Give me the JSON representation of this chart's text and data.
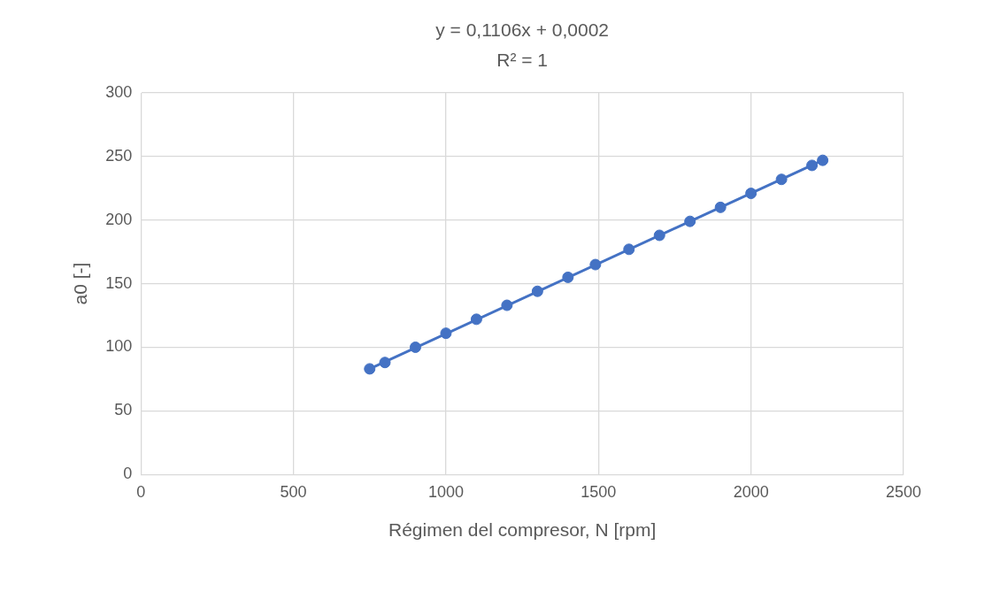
{
  "chart_data": {
    "type": "scatter",
    "xlabel": "Régimen del compresor, N [rpm]",
    "ylabel": "a0 [-]",
    "annotations": [
      "y = 0,1106x + 0,0002",
      "R² = 1"
    ],
    "series": [
      {
        "type": "scatter",
        "color": "#4472c4",
        "x": [
          750,
          800,
          900,
          1000,
          1100,
          1200,
          1300,
          1400,
          1490,
          1600,
          1700,
          1800,
          1900,
          2000,
          2100,
          2200,
          2235
        ],
        "values": [
          83,
          88,
          100,
          111,
          122,
          133,
          144,
          155,
          165,
          177,
          188,
          199,
          210,
          221,
          232,
          243,
          247
        ]
      },
      {
        "type": "line",
        "color": "#4472c4",
        "marker": "none",
        "x": [
          750,
          2235
        ],
        "values": [
          83,
          247
        ]
      }
    ],
    "xlim": [
      0,
      2500
    ],
    "xticks": [
      0,
      500,
      1000,
      1500,
      2000,
      2500
    ],
    "ylim": [
      0,
      300
    ],
    "yticks": [
      0,
      50,
      100,
      150,
      200,
      250,
      300
    ],
    "grid": true,
    "marker": "circle",
    "line_style": "solid"
  }
}
